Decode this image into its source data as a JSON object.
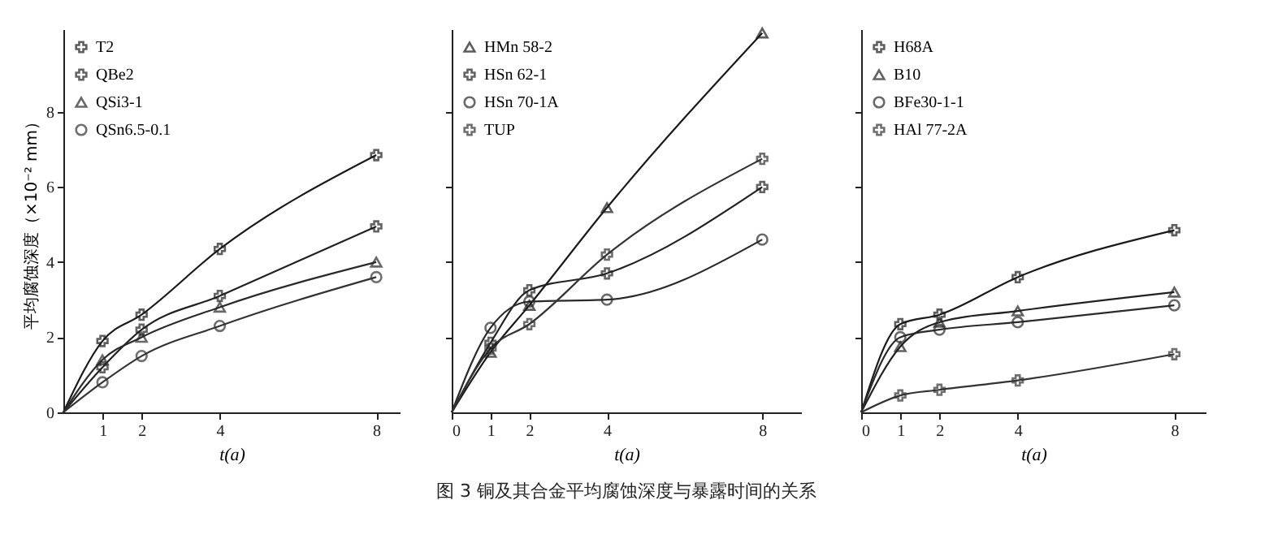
{
  "chart_data": [
    {
      "type": "line",
      "xlabel": "t(a)",
      "ylabel": "平均腐蚀深度（×10⁻² mm）",
      "x": [
        0,
        1,
        2,
        4,
        8
      ],
      "xlim": [
        0,
        8.6
      ],
      "xticks": [
        1,
        2,
        4,
        8
      ],
      "ylim": [
        0,
        10.2
      ],
      "yticks": [
        0,
        2,
        4,
        6,
        8
      ],
      "legend": "top left",
      "grid": false,
      "series": [
        {
          "name": "T2",
          "color": "#1a1a1a",
          "marker": "cross",
          "values": [
            0,
            1.9,
            2.6,
            4.35,
            6.85
          ]
        },
        {
          "name": "QBe2",
          "color": "#222222",
          "marker": "cross",
          "values": [
            0,
            1.2,
            2.2,
            3.1,
            4.95
          ]
        },
        {
          "name": "QSi3-1",
          "color": "#2a2a2a",
          "marker": "triangle",
          "values": [
            0,
            1.4,
            2.0,
            2.8,
            4.0
          ]
        },
        {
          "name": "QSn6.5-0.1",
          "color": "#333333",
          "marker": "circle",
          "values": [
            0,
            0.8,
            1.5,
            2.3,
            3.6
          ]
        }
      ]
    },
    {
      "type": "line",
      "title": "图 3  铜及其合金平均腐蚀深度与暴露时间的关系",
      "xlabel": "t(a)",
      "x": [
        0,
        1,
        2,
        4,
        8
      ],
      "xlim": [
        0,
        9
      ],
      "xticks": [
        0,
        1,
        2,
        4,
        8
      ],
      "ylim": [
        0,
        10.2
      ],
      "yticks": [
        {
          "value": 2,
          "label": null
        },
        {
          "value": 4,
          "label": null
        },
        {
          "value": 6,
          "label": null
        },
        {
          "value": 8,
          "label": null
        }
      ],
      "tick_labels": "x",
      "legend": "top left",
      "grid": false,
      "series": [
        {
          "name": "HMn 58-2",
          "color": "#1a1a1a",
          "marker": "triangle",
          "values": [
            0,
            1.6,
            2.85,
            5.45,
            10.1
          ]
        },
        {
          "name": "HSn 62-1",
          "color": "#222222",
          "marker": "cross",
          "values": [
            0,
            1.85,
            3.25,
            3.7,
            6.0
          ]
        },
        {
          "name": "HSn 70-1A",
          "color": "#2a2a2a",
          "marker": "circle",
          "values": [
            0,
            2.25,
            2.95,
            3.0,
            4.6
          ]
        },
        {
          "name": "TUP",
          "color": "#333333",
          "marker": "cross",
          "values": [
            0,
            1.7,
            2.35,
            4.2,
            6.75
          ]
        }
      ]
    },
    {
      "type": "line",
      "xlabel": "t(a)",
      "x": [
        0,
        1,
        2,
        4,
        8
      ],
      "xlim": [
        0,
        8.8
      ],
      "xticks": [
        0,
        1,
        2,
        4,
        8
      ],
      "ylim": [
        0,
        10.2
      ],
      "yticks": [
        {
          "value": 2,
          "label": null
        },
        {
          "value": 4,
          "label": null
        },
        {
          "value": 6,
          "label": null
        },
        {
          "value": 8,
          "label": null
        }
      ],
      "tick_labels": "x",
      "legend": "top left",
      "grid": false,
      "series": [
        {
          "name": "H68A",
          "color": "#1a1a1a",
          "marker": "cross",
          "values": [
            0,
            2.35,
            2.6,
            3.6,
            4.85
          ]
        },
        {
          "name": "B10",
          "color": "#222222",
          "marker": "triangle",
          "values": [
            0,
            1.75,
            2.4,
            2.7,
            3.2
          ]
        },
        {
          "name": "BFe30-1-1",
          "color": "#2a2a2a",
          "marker": "circle",
          "values": [
            0,
            2.0,
            2.2,
            2.4,
            2.85
          ]
        },
        {
          "name": "HAl 77-2A",
          "color": "#333333",
          "marker": "cross",
          "values": [
            0,
            0.45,
            0.6,
            0.85,
            1.55
          ]
        }
      ]
    }
  ]
}
